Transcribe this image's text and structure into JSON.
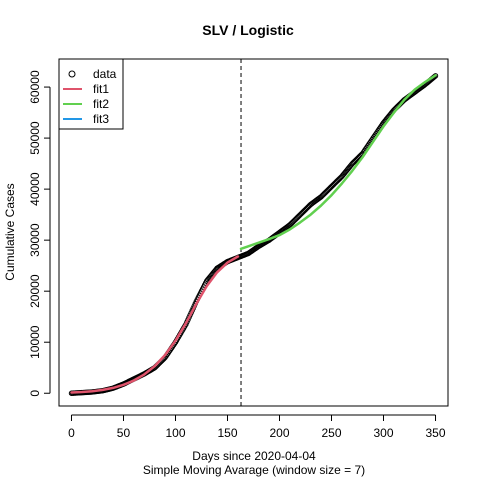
{
  "chart_data": {
    "type": "line",
    "title": "SLV / Logistic",
    "xlabel": "Days since 2020-04-04",
    "xlabel2": "Simple Moving Avarage (window size = 7)",
    "ylabel": "Cumulative Cases",
    "xlim": [
      -12,
      362
    ],
    "ylim": [
      -2500,
      65500
    ],
    "x_ticks": [
      0,
      50,
      100,
      150,
      200,
      250,
      300,
      350
    ],
    "x_tick_labels": [
      "0",
      "50",
      "100",
      "150",
      "200",
      "250",
      "300",
      "350"
    ],
    "y_ticks": [
      0,
      10000,
      20000,
      30000,
      40000,
      50000,
      60000
    ],
    "y_tick_labels": [
      "0",
      "10000",
      "20000",
      "30000",
      "40000",
      "50000",
      "60000"
    ],
    "vline_x": 163,
    "legend": {
      "position": "top-left",
      "entries": [
        {
          "label": "data",
          "symbol": "circle",
          "color": "#000000"
        },
        {
          "label": "fit1",
          "symbol": "line",
          "color": "#DF536B"
        },
        {
          "label": "fit2",
          "symbol": "line",
          "color": "#61D04F"
        },
        {
          "label": "fit3",
          "symbol": "line",
          "color": "#2297E6"
        }
      ]
    },
    "series": [
      {
        "name": "data",
        "kind": "points",
        "color": "#000000",
        "x": [
          0,
          10,
          20,
          30,
          40,
          50,
          60,
          70,
          80,
          90,
          100,
          110,
          120,
          130,
          140,
          150,
          160,
          170,
          180,
          190,
          200,
          210,
          220,
          230,
          240,
          250,
          260,
          270,
          280,
          290,
          300,
          310,
          320,
          330,
          340,
          350
        ],
        "y": [
          0,
          120,
          250,
          500,
          1000,
          1800,
          2800,
          3800,
          5000,
          7000,
          10000,
          13500,
          18000,
          22000,
          24500,
          25800,
          26600,
          27400,
          28800,
          30000,
          31500,
          33000,
          35000,
          37000,
          38500,
          40500,
          42500,
          45000,
          47000,
          50000,
          53000,
          55500,
          57500,
          59000,
          60500,
          62200
        ]
      },
      {
        "name": "fit1",
        "kind": "line",
        "color": "#DF536B",
        "x": [
          0,
          10,
          20,
          30,
          40,
          50,
          60,
          70,
          80,
          90,
          100,
          110,
          120,
          130,
          140,
          150,
          160
        ],
        "y": [
          150,
          250,
          400,
          650,
          1050,
          1650,
          2500,
          3700,
          5300,
          7500,
          10300,
          13700,
          17500,
          21000,
          23700,
          25600,
          26800
        ]
      },
      {
        "name": "fit2",
        "kind": "line",
        "color": "#61D04F",
        "x": [
          163,
          170,
          180,
          190,
          200,
          210,
          220,
          230,
          240,
          250,
          260,
          270,
          280,
          290,
          300,
          310,
          320,
          330,
          340,
          350
        ],
        "y": [
          28300,
          28800,
          29500,
          30200,
          31000,
          32100,
          33500,
          35000,
          36800,
          38800,
          41100,
          43600,
          46300,
          49300,
          52300,
          55000,
          57500,
          59500,
          61000,
          62300
        ]
      },
      {
        "name": "fit3",
        "kind": "line",
        "color": "#2297E6",
        "x": [],
        "y": []
      }
    ]
  }
}
